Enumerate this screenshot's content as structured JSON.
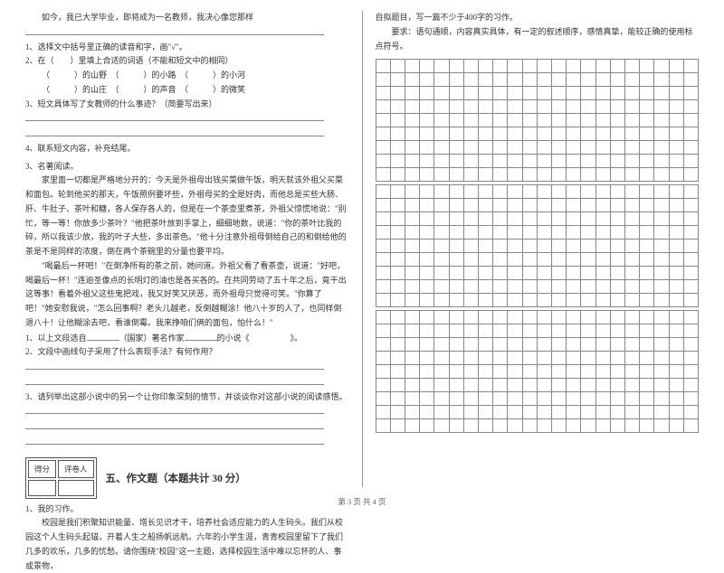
{
  "left": {
    "intro": "如今，我已大学毕业，即将成为一名教师，我决心像您那样",
    "q1": "1、选择文中括号里正确的读音和字，画\"√\"。",
    "q2_lead": "2、在（　　）里填上合适的词语（不能和短文中的相同）",
    "q2_a": "（　　　）的山野　（　　　）的小路　（　　　）的小河",
    "q2_b": "（　　　）的山庄　（　　　）的声音　（　　　）的微笑",
    "q3": "3、短文具体写了女教师的什么事迹？（简要写出来）",
    "q4": "4、联系短文内容，补充结尾。",
    "n3": "3、名著阅读。",
    "p1": "家里面一切都是严格地分开的：今天是外祖母出钱买菜做午饭，明天就该外祖父买菜和面包。轮到他买的那天，午饭照例要坏些，外祖母买的全是好肉，而他总是买些大肠、肝、牛肚子、茶叶和糖，各人保存各人的，但是在一个茶壶里煮茶，外祖父惊慌地说：\"别忙，等一等！你放多少茶叶？\"他把茶叶放到手掌上，细细地数，说道：\"你的茶叶比我的碎，所以我该少放，我的叶子大些，多出茶色。\"他十分注意外祖母倒给自己的和倒给他的茶是不是同样的浓度，倒在两个茶碗里的分量也要平均。",
    "p2": "\"喝最后一杯吧！\"在倒净所有的茶之前，她问道。外祖父看了看茶壶，说道：\"好吧，喝最后一杯！\"连逾圣像点的长明灯的油也是各买各的。在共同劳动了五十年之后，竟干出这等事！看着外祖父这些鬼把戏，我又好笑又厌恶，而外祖母只觉得可笑。\"你算了吧！\"她安慰我说，\"怎么回事啊？老头儿越老，反倒越糊涂！他八十岁的人了，也同样倒退八十！让他糊涂去吧，看谁倒霉。我来挣咱们俩的面包，怕什么！\"",
    "nq1_a": "1、以上文段选自",
    "nq1_b": "（国家）著名作家",
    "nq1_c": "的小说《　　　　　》。",
    "nq2": "2、文段中画线句子采用了什么表现手法？有何作用？",
    "nq3": "3、请列举出这部小说中的另一个让你印象深刻的情节，并谈谈你对这部小说的阅读感悟。",
    "scoreHead1": "得分",
    "scoreHead2": "评卷人",
    "secTitle": "五、作文题（本题共计 30 分）",
    "w1": "1、我的习作。",
    "wtext": "校园是我们积聚知识能量、增长见识才干，培养社会适应能力的人生码头。我们从校园这个人生码头起锚，开着人生之船扬帆远航。六年的小学生涯，青青校园里留下了我们几多的欢乐，几多的忧愁。请你围绕\"校园\"这一主题，选择校园生活中难以忘怀的人、事或景物，"
  },
  "right": {
    "r1": "自拟题目，写一篇不少于400字的习作。",
    "r2": "要求：语句通顺，内容真实具体，有一定的叙述顺序，感情真挚，能较正确的使用标点符号。"
  },
  "footer": "第 3 页 共 4 页",
  "style": {
    "grid_cols": 22,
    "grid_blocks": 3,
    "grid_rows_per_block": 9,
    "grid_border": "#888888",
    "text_color": "#333333",
    "bg": "#ffffff"
  }
}
